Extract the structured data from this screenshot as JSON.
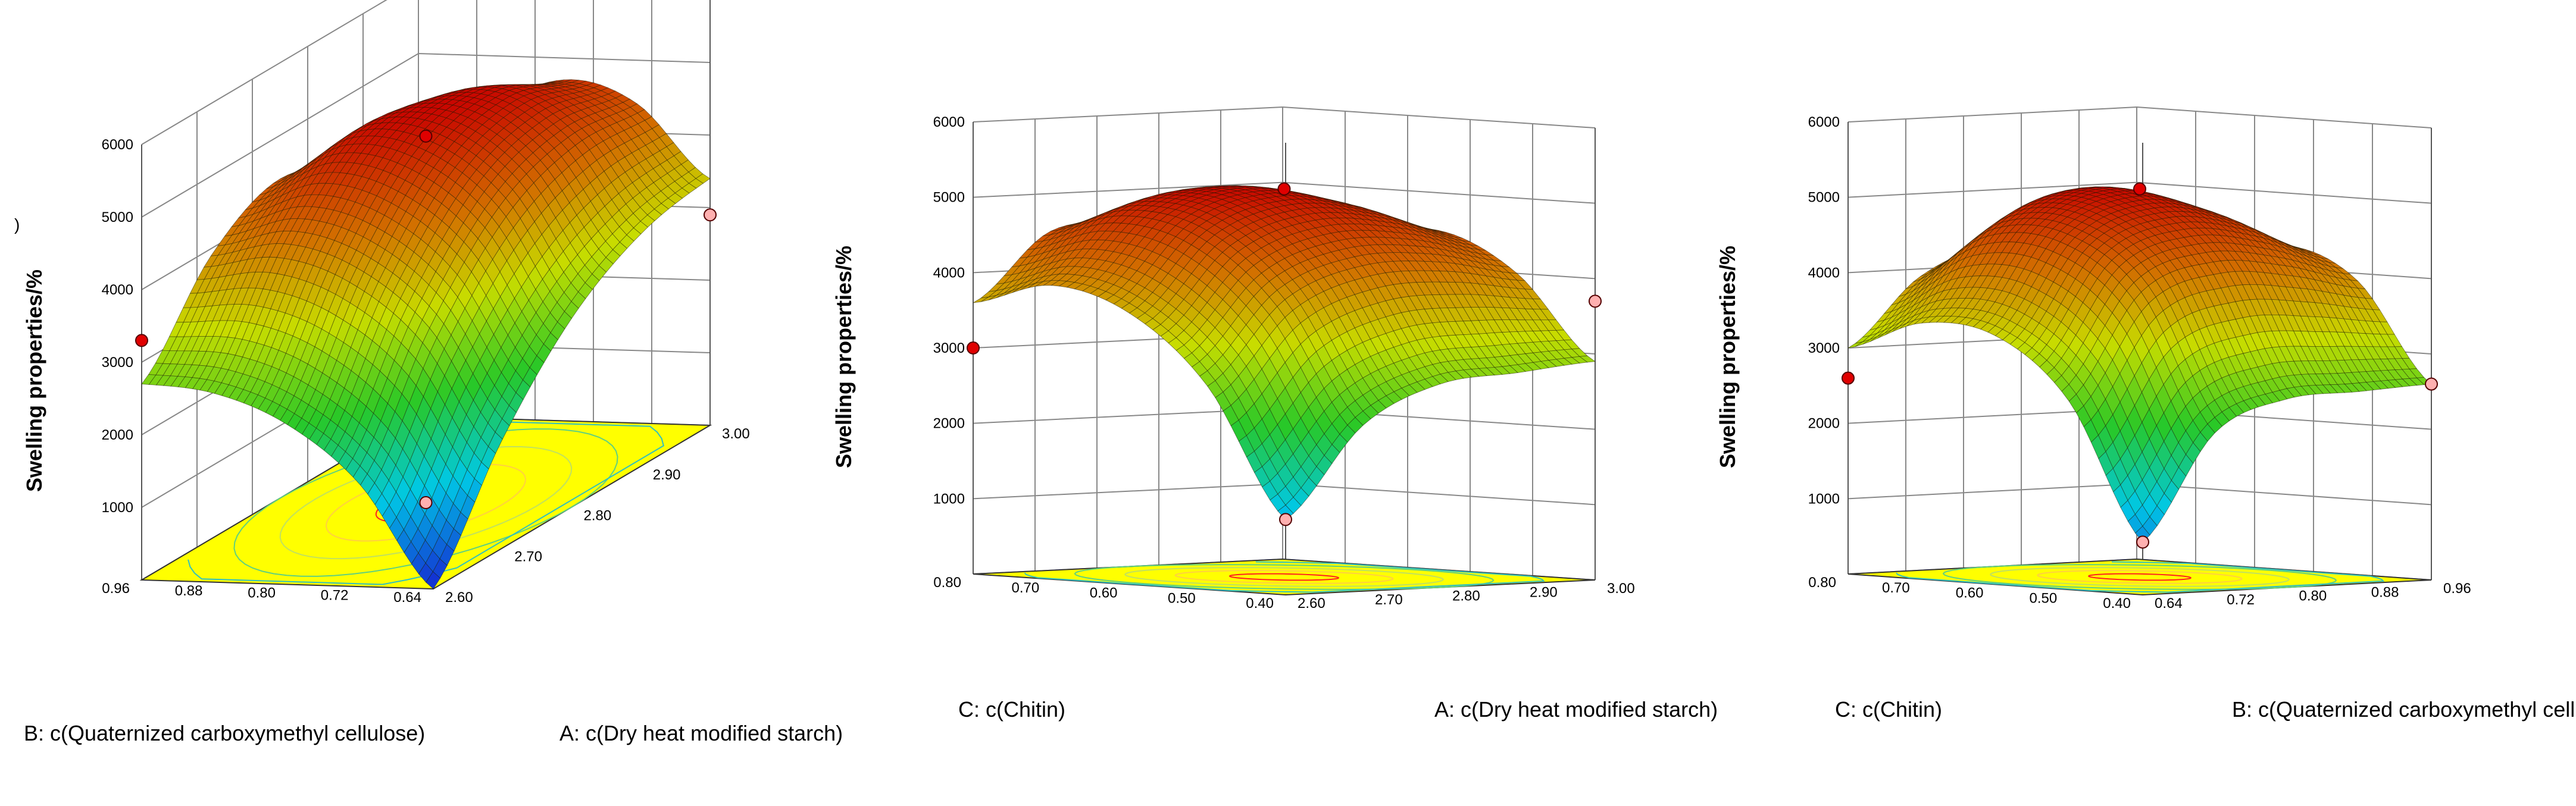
{
  "chart_data": [
    {
      "type": "surface",
      "zlabel": "Swelling properties/%",
      "xlabel": "B: c(Quaternized carboxymethyl cellulose)",
      "ylabel": "A: c(Dry heat modified starch)",
      "x_ticks": [
        "0.64",
        "0.72",
        "0.80",
        "0.88",
        "0.96"
      ],
      "y_ticks": [
        "2.60",
        "2.70",
        "2.80",
        "2.90",
        "3.00"
      ],
      "z_ticks": [
        "1000",
        "2000",
        "3000",
        "4000",
        "5000",
        "6000"
      ],
      "xlim": [
        0.64,
        0.96
      ],
      "ylim": [
        2.6,
        3.0
      ],
      "zlim": [
        0,
        6000
      ],
      "z_grid": [
        [
          0,
          1400,
          2200,
          2600,
          2700
        ],
        [
          1500,
          3000,
          3800,
          4100,
          3900
        ],
        [
          2600,
          4100,
          4850,
          5000,
          4400
        ],
        [
          3200,
          4500,
          5100,
          4900,
          3900
        ],
        [
          3400,
          4400,
          4700,
          4200,
          2900
        ]
      ],
      "design_points": [
        {
          "x": 0.8,
          "y": 2.8,
          "z": 5050
        },
        {
          "x": 0.96,
          "y": 2.6,
          "z": 3300
        },
        {
          "x": 0.64,
          "y": 3.0,
          "z": 2900
        },
        {
          "x": 0.8,
          "y": 2.8,
          "z": 0
        }
      ],
      "extra_text": ")"
    },
    {
      "type": "surface",
      "zlabel": "Swelling properties/%",
      "xlabel": "C: c(Chitin)",
      "ylabel": "A: c(Dry heat modified starch)",
      "x_ticks": [
        "0.40",
        "0.50",
        "0.60",
        "0.70",
        "0.80"
      ],
      "y_ticks": [
        "2.60",
        "2.70",
        "2.80",
        "2.90",
        "3.00"
      ],
      "z_ticks": [
        "1000",
        "2000",
        "3000",
        "4000",
        "5000",
        "6000"
      ],
      "xlim": [
        0.4,
        0.8
      ],
      "ylim": [
        2.6,
        3.0
      ],
      "zlim": [
        0,
        6000
      ],
      "z_grid": [
        [
          1000,
          2700,
          3600,
          3900,
          3600
        ],
        [
          2200,
          3800,
          4650,
          4850,
          4500
        ],
        [
          2700,
          4200,
          5000,
          5100,
          4500
        ],
        [
          2800,
          4200,
          4850,
          4800,
          4000
        ],
        [
          2900,
          4000,
          4500,
          4300,
          3700
        ]
      ],
      "design_points": [
        {
          "x": 0.6,
          "y": 2.8,
          "z": 5150
        },
        {
          "x": 0.8,
          "y": 2.6,
          "z": 3000
        },
        {
          "x": 0.4,
          "y": 3.0,
          "z": 3700
        },
        {
          "x": 0.4,
          "y": 2.6,
          "z": 1000
        }
      ]
    },
    {
      "type": "surface",
      "zlabel": "Swelling properties/%",
      "xlabel": "C: c(Chitin)",
      "ylabel": "B: c(Quaternized carboxymethyl cellulose)",
      "x_ticks": [
        "0.40",
        "0.50",
        "0.60",
        "0.70",
        "0.80"
      ],
      "y_ticks": [
        "0.64",
        "0.72",
        "0.80",
        "0.88",
        "0.96"
      ],
      "z_ticks": [
        "1000",
        "2000",
        "3000",
        "4000",
        "5000",
        "6000"
      ],
      "xlim": [
        0.4,
        0.8
      ],
      "ylim": [
        0.64,
        0.96
      ],
      "zlim": [
        0,
        6000
      ],
      "z_grid": [
        [
          700,
          2500,
          3300,
          3400,
          3000
        ],
        [
          2100,
          3900,
          4600,
          4600,
          3900
        ],
        [
          2500,
          4250,
          5000,
          5050,
          4200
        ],
        [
          2550,
          4150,
          4800,
          4700,
          3600
        ],
        [
          2600,
          3900,
          4300,
          3900,
          2600
        ]
      ],
      "design_points": [
        {
          "x": 0.6,
          "y": 0.8,
          "z": 5150
        },
        {
          "x": 0.8,
          "y": 0.64,
          "z": 2600
        },
        {
          "x": 0.4,
          "y": 0.96,
          "z": 2600
        },
        {
          "x": 0.4,
          "y": 0.64,
          "z": 700
        }
      ]
    }
  ]
}
